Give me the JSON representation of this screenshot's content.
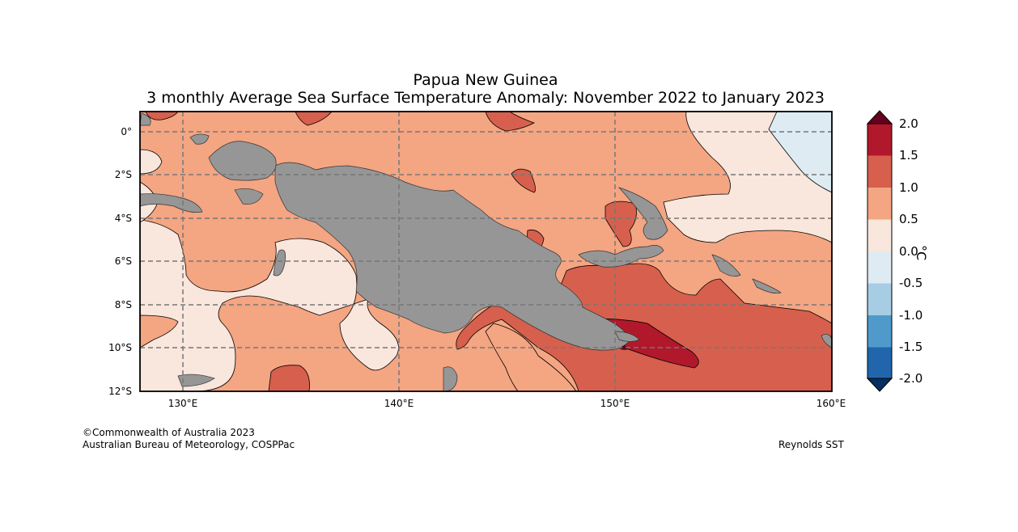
{
  "title": "Papua New Guinea",
  "subtitle": "3 monthly Average Sea Surface Temperature Anomaly: November 2022 to January 2023",
  "y_ticks": [
    "0°",
    "2°S",
    "4°S",
    "6°S",
    "8°S",
    "10°S",
    "12°S"
  ],
  "x_ticks": [
    "130°E",
    "140°E",
    "150°E",
    "160°E"
  ],
  "colorbar": {
    "labels": [
      "2.0",
      "1.5",
      "1.0",
      "0.5",
      "0.0",
      "-0.5",
      "-1.0",
      "-1.5",
      "-2.0"
    ],
    "unit": "°C",
    "colors": {
      "above_2.0": "#67001f",
      "1.5_to_2.0": "#b2182b",
      "1.0_to_1.5": "#d6604d",
      "0.5_to_1.0": "#f4a582",
      "0.0_to_0.5": "#f9e6dc",
      "-0.5_to_0.0": "#deebf3",
      "-1.0_to_-0.5": "#a6cde3",
      "-1.5_to_-1.0": "#4f9aca",
      "-2.0_to_-1.5": "#2166ac",
      "below_-2.0": "#053061"
    }
  },
  "land_color": "#969696",
  "extent": {
    "lon": [
      128,
      160
    ],
    "lat": [
      -12,
      1
    ]
  },
  "credits": {
    "copyright": "©Commonwealth of Australia 2023",
    "agency": "Australian Bureau of Meteorology, COSPPac",
    "source": "Reynolds SST"
  }
}
